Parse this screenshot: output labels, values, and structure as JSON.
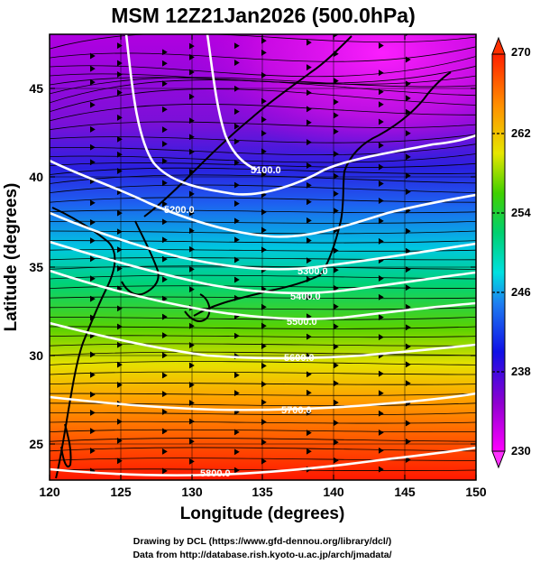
{
  "header": {
    "title": "MSM 12Z21Jan2026 (500.0hPa)"
  },
  "axes": {
    "xlabel": "Longitude (degrees)",
    "ylabel": "Latitude  (degrees)",
    "xlim": [
      120,
      150
    ],
    "ylim": [
      22.5,
      47.5
    ],
    "xticks": [
      "120",
      "125",
      "130",
      "135",
      "140",
      "145",
      "150"
    ],
    "yticks": [
      "25",
      "30",
      "35",
      "40",
      "45"
    ]
  },
  "colorbar": {
    "range": [
      230,
      270
    ],
    "ticks": [
      "270",
      "262",
      "254",
      "246",
      "238",
      "230"
    ],
    "palette": [
      "#ff00ff",
      "#8a00c8",
      "#1a10e6",
      "#00c8e8",
      "#00d26e",
      "#5ad200",
      "#f0e600",
      "#ff8c00",
      "#ff2000"
    ]
  },
  "contours": {
    "labels": [
      "5100.0",
      "5200.0",
      "5300.0",
      "5400.0",
      "5500.0",
      "5600.0",
      "5700.0",
      "5800.0"
    ],
    "line_color": "#ffffff"
  },
  "credits": {
    "line1": "Drawing by DCL (https://www.gfd-dennou.org/library/dcl/)",
    "line2": "Data from http://database.rish.kyoto-u.ac.jp/arch/jmadata/"
  }
}
